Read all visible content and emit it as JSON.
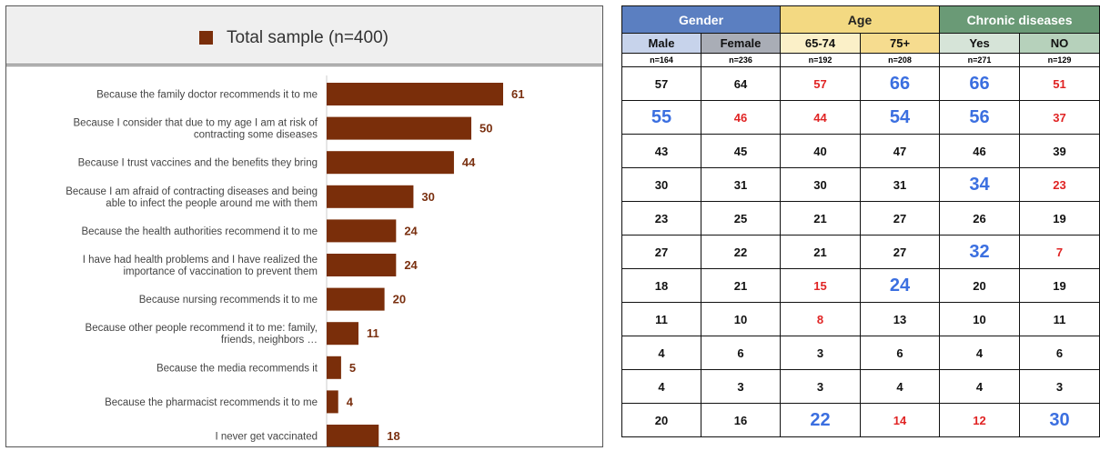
{
  "legend": {
    "label": "Total sample (n=400)",
    "color": "#7a2e0a"
  },
  "chart_data": {
    "type": "bar",
    "orientation": "horizontal",
    "categories": [
      [
        "Because the family doctor recommends it to me"
      ],
      [
        "Because I consider that due to my age I am at risk of",
        "contracting some diseases"
      ],
      [
        "Because I trust vaccines and the benefits they bring"
      ],
      [
        "Because I am afraid of contracting diseases and being",
        "able to infect the people around me with them"
      ],
      [
        "Because the health authorities recommend it to me"
      ],
      [
        "I have had health problems and I have realized the",
        "importance of vaccination to prevent them"
      ],
      [
        "Because nursing recommends it to me"
      ],
      [
        "Because other people recommend it to me: family,",
        "friends, neighbors …"
      ],
      [
        "Because the media recommends it"
      ],
      [
        "Because the pharmacist recommends it to me"
      ],
      [
        "I never get vaccinated"
      ]
    ],
    "series": [
      {
        "name": "Total sample (n=400)",
        "values": [
          61,
          50,
          44,
          30,
          24,
          24,
          20,
          11,
          5,
          4,
          18
        ]
      }
    ],
    "bar_color": "#7a2e0a",
    "label_color": "#7a3010",
    "xlim": [
      0,
      70
    ]
  },
  "table": {
    "groups": [
      {
        "label": "Gender",
        "bg": "#5b7fc1",
        "fg": "#ffffff"
      },
      {
        "label": "Age",
        "bg": "#f3d982",
        "fg": "#222222"
      },
      {
        "label": "Chronic diseases",
        "bg": "#6a9a76",
        "fg": "#ffffff"
      }
    ],
    "subheaders": [
      {
        "label": "Male",
        "bg": "#c7d3eb"
      },
      {
        "label": "Female",
        "bg": "#a9adb6"
      },
      {
        "label": "65-74",
        "bg": "#fbf0c8"
      },
      {
        "label": "75+",
        "bg": "#f6dc8f"
      },
      {
        "label": "Yes",
        "bg": "#d6e4d8"
      },
      {
        "label": "NO",
        "bg": "#b6d1bb"
      }
    ],
    "ns": [
      "n=164",
      "n=236",
      "n=192",
      "n=208",
      "n=271",
      "n=129"
    ],
    "rows": [
      [
        [
          "57",
          "k"
        ],
        [
          "64",
          "k"
        ],
        [
          "57",
          "r"
        ],
        [
          "66",
          "b"
        ],
        [
          "66",
          "b"
        ],
        [
          "51",
          "r"
        ]
      ],
      [
        [
          "55",
          "b"
        ],
        [
          "46",
          "r"
        ],
        [
          "44",
          "r"
        ],
        [
          "54",
          "b"
        ],
        [
          "56",
          "b"
        ],
        [
          "37",
          "r"
        ]
      ],
      [
        [
          "43",
          "k"
        ],
        [
          "45",
          "k"
        ],
        [
          "40",
          "k"
        ],
        [
          "47",
          "k"
        ],
        [
          "46",
          "k"
        ],
        [
          "39",
          "k"
        ]
      ],
      [
        [
          "30",
          "k"
        ],
        [
          "31",
          "k"
        ],
        [
          "30",
          "k"
        ],
        [
          "31",
          "k"
        ],
        [
          "34",
          "b"
        ],
        [
          "23",
          "r"
        ]
      ],
      [
        [
          "23",
          "k"
        ],
        [
          "25",
          "k"
        ],
        [
          "21",
          "k"
        ],
        [
          "27",
          "k"
        ],
        [
          "26",
          "k"
        ],
        [
          "19",
          "k"
        ]
      ],
      [
        [
          "27",
          "k"
        ],
        [
          "22",
          "k"
        ],
        [
          "21",
          "k"
        ],
        [
          "27",
          "k"
        ],
        [
          "32",
          "b"
        ],
        [
          "7",
          "r"
        ]
      ],
      [
        [
          "18",
          "k"
        ],
        [
          "21",
          "k"
        ],
        [
          "15",
          "r"
        ],
        [
          "24",
          "b"
        ],
        [
          "20",
          "k"
        ],
        [
          "19",
          "k"
        ]
      ],
      [
        [
          "11",
          "k"
        ],
        [
          "10",
          "k"
        ],
        [
          "8",
          "r"
        ],
        [
          "13",
          "k"
        ],
        [
          "10",
          "k"
        ],
        [
          "11",
          "k"
        ]
      ],
      [
        [
          "4",
          "k"
        ],
        [
          "6",
          "k"
        ],
        [
          "3",
          "k"
        ],
        [
          "6",
          "k"
        ],
        [
          "4",
          "k"
        ],
        [
          "6",
          "k"
        ]
      ],
      [
        [
          "4",
          "k"
        ],
        [
          "3",
          "k"
        ],
        [
          "3",
          "k"
        ],
        [
          "4",
          "k"
        ],
        [
          "4",
          "k"
        ],
        [
          "3",
          "k"
        ]
      ],
      [
        [
          "20",
          "k"
        ],
        [
          "16",
          "k"
        ],
        [
          "22",
          "b"
        ],
        [
          "14",
          "r"
        ],
        [
          "12",
          "r"
        ],
        [
          "30",
          "b"
        ]
      ]
    ]
  }
}
